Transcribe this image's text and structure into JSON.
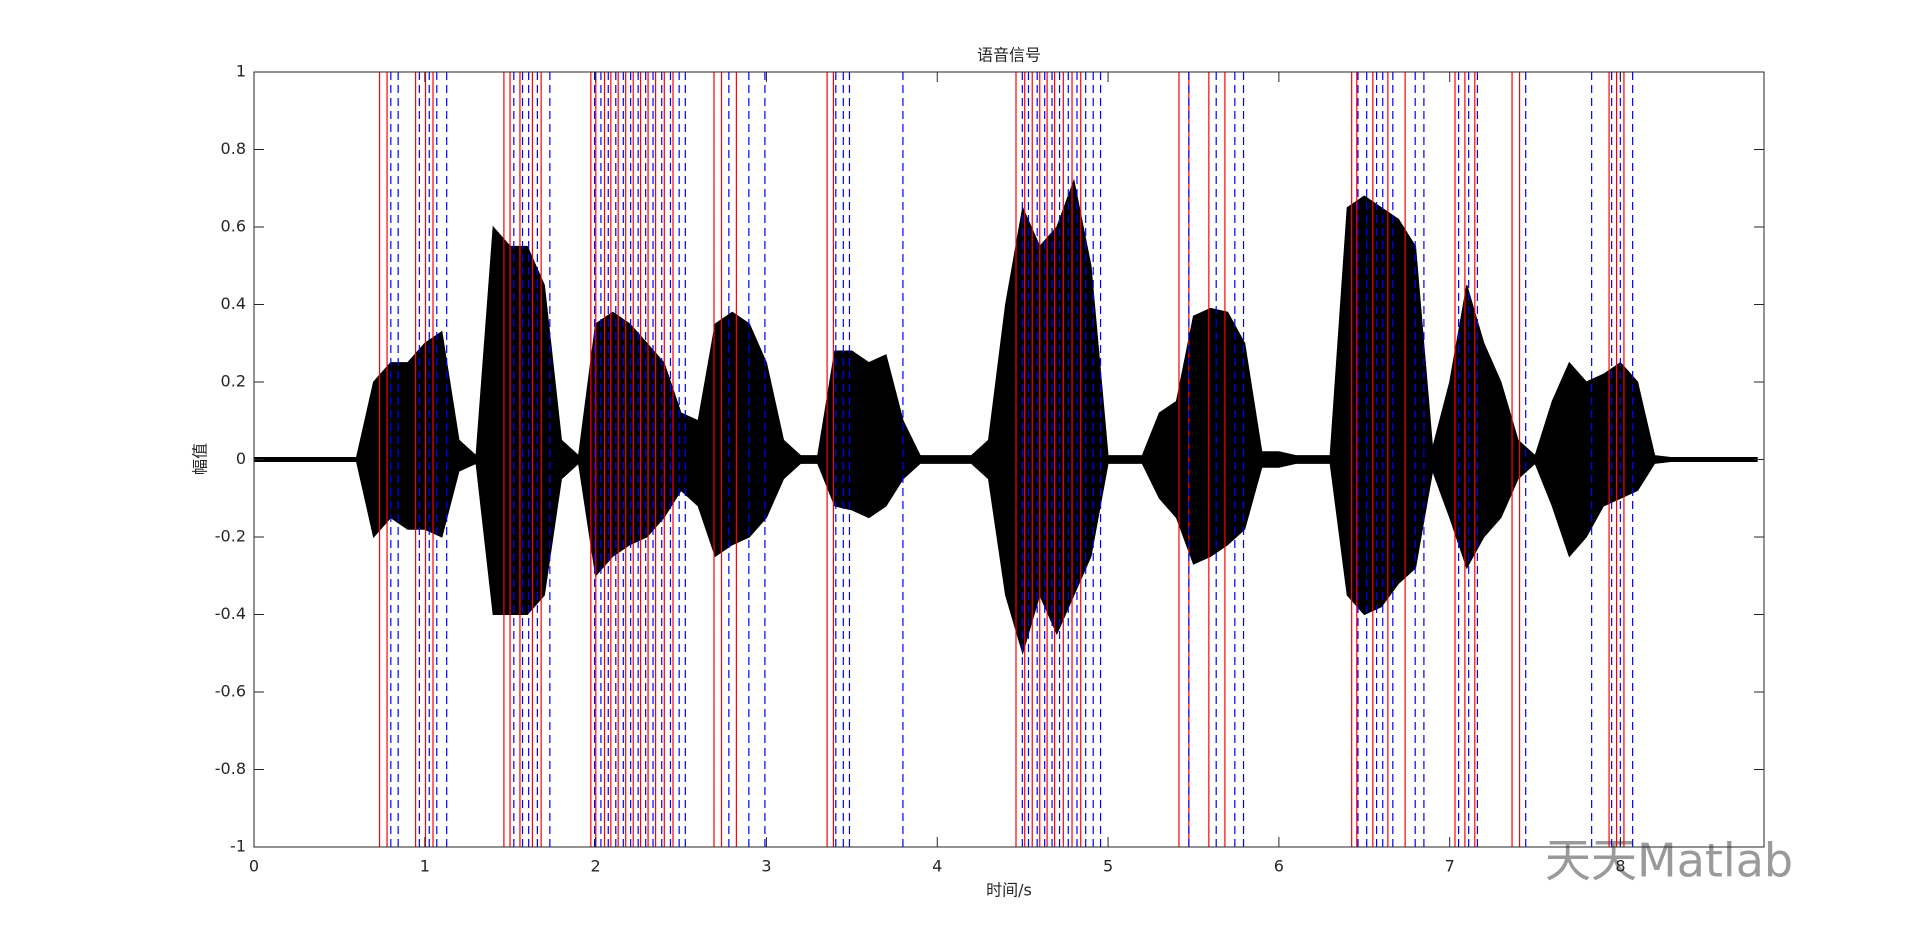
{
  "chart_data": {
    "type": "waveform",
    "title": "语音信号",
    "x_label": "时间/s",
    "y_label": "幅值",
    "watermark": "天天Matlab",
    "x": [
      0,
      0.1,
      0.2,
      0.3,
      0.4,
      0.5,
      0.6,
      0.7,
      0.8,
      0.9,
      1.0,
      1.1,
      1.2,
      1.3,
      1.4,
      1.5,
      1.6,
      1.7,
      1.8,
      1.9,
      2.0,
      2.1,
      2.2,
      2.3,
      2.4,
      2.5,
      2.6,
      2.7,
      2.8,
      2.9,
      3.0,
      3.1,
      3.2,
      3.3,
      3.4,
      3.5,
      3.6,
      3.7,
      3.8,
      3.9,
      4.0,
      4.1,
      4.2,
      4.3,
      4.4,
      4.5,
      4.6,
      4.7,
      4.8,
      4.9,
      5.0,
      5.1,
      5.2,
      5.3,
      5.4,
      5.5,
      5.6,
      5.7,
      5.8,
      5.9,
      6.0,
      6.1,
      6.2,
      6.3,
      6.4,
      6.5,
      6.6,
      6.7,
      6.8,
      6.9,
      7.0,
      7.1,
      7.2,
      7.3,
      7.4,
      7.5,
      7.6,
      7.7,
      7.8,
      7.9,
      8.0,
      8.1,
      8.2,
      8.3,
      8.4,
      8.5,
      8.6,
      8.7,
      8.8
    ],
    "upper": [
      0.005,
      0.005,
      0.005,
      0.005,
      0.005,
      0.005,
      0.005,
      0.2,
      0.25,
      0.25,
      0.3,
      0.33,
      0.05,
      0.01,
      0.6,
      0.55,
      0.55,
      0.45,
      0.05,
      0.01,
      0.35,
      0.38,
      0.35,
      0.3,
      0.25,
      0.12,
      0.1,
      0.35,
      0.38,
      0.35,
      0.25,
      0.05,
      0.01,
      0.01,
      0.28,
      0.28,
      0.25,
      0.27,
      0.1,
      0.01,
      0.01,
      0.01,
      0.01,
      0.05,
      0.4,
      0.65,
      0.55,
      0.6,
      0.72,
      0.5,
      0.01,
      0.01,
      0.01,
      0.12,
      0.15,
      0.37,
      0.39,
      0.38,
      0.3,
      0.02,
      0.02,
      0.01,
      0.01,
      0.01,
      0.65,
      0.68,
      0.65,
      0.62,
      0.55,
      0.03,
      0.2,
      0.45,
      0.3,
      0.2,
      0.05,
      0.01,
      0.15,
      0.25,
      0.2,
      0.22,
      0.25,
      0.2,
      0.01,
      0.005,
      0.005,
      0.005,
      0.005,
      0.005,
      0.005
    ],
    "lower": [
      -0.005,
      -0.005,
      -0.005,
      -0.005,
      -0.005,
      -0.005,
      -0.005,
      -0.2,
      -0.15,
      -0.18,
      -0.18,
      -0.2,
      -0.03,
      -0.01,
      -0.4,
      -0.4,
      -0.4,
      -0.35,
      -0.05,
      -0.01,
      -0.3,
      -0.25,
      -0.22,
      -0.2,
      -0.15,
      -0.08,
      -0.12,
      -0.25,
      -0.22,
      -0.2,
      -0.15,
      -0.05,
      -0.01,
      -0.01,
      -0.12,
      -0.13,
      -0.15,
      -0.12,
      -0.05,
      -0.01,
      -0.01,
      -0.01,
      -0.01,
      -0.05,
      -0.35,
      -0.5,
      -0.35,
      -0.45,
      -0.35,
      -0.25,
      -0.01,
      -0.01,
      -0.01,
      -0.1,
      -0.15,
      -0.27,
      -0.25,
      -0.22,
      -0.18,
      -0.02,
      -0.02,
      -0.01,
      -0.01,
      -0.01,
      -0.35,
      -0.4,
      -0.38,
      -0.32,
      -0.28,
      -0.03,
      -0.15,
      -0.28,
      -0.2,
      -0.15,
      -0.05,
      -0.01,
      -0.12,
      -0.25,
      -0.2,
      -0.12,
      -0.1,
      -0.08,
      -0.01,
      -0.005,
      -0.005,
      -0.005,
      -0.005,
      -0.005,
      -0.005
    ],
    "color": "#000000",
    "segment_starts": {
      "color": "#ff0000",
      "dashed": false,
      "values": [
        0.735,
        0.779,
        0.946,
        1.004,
        1.048,
        1.463,
        1.499,
        1.557,
        1.63,
        1.681,
        1.972,
        2.001,
        2.052,
        2.089,
        2.132,
        2.176,
        2.22,
        2.263,
        2.307,
        2.351,
        2.402,
        2.453,
        2.693,
        2.737,
        2.824,
        3.355,
        3.392,
        4.461,
        4.512,
        4.556,
        4.6,
        4.643,
        4.687,
        4.738,
        4.789,
        4.84,
        5.415,
        5.473,
        5.59,
        5.684,
        6.426,
        6.456,
        6.55,
        6.638,
        6.739,
        7.031,
        7.089,
        7.147,
        7.365,
        7.409,
        7.933,
        7.977,
        8.02
      ]
    },
    "segment_ends": {
      "color": "#0000ff",
      "dashed": true,
      "values": [
        0.801,
        0.844,
        0.968,
        1.026,
        1.07,
        1.128,
        1.521,
        1.572,
        1.608,
        1.659,
        1.732,
        1.994,
        2.031,
        2.074,
        2.118,
        2.162,
        2.205,
        2.249,
        2.293,
        2.336,
        2.387,
        2.438,
        2.489,
        2.525,
        2.78,
        2.897,
        2.991,
        3.406,
        3.45,
        3.486,
        3.799,
        4.498,
        4.534,
        4.585,
        4.629,
        4.672,
        4.716,
        4.767,
        4.818,
        4.869,
        4.913,
        4.956,
        5.473,
        5.633,
        5.742,
        5.793,
        6.463,
        6.514,
        6.572,
        6.608,
        6.667,
        6.798,
        6.849,
        7.052,
        7.111,
        7.162,
        7.445,
        7.831,
        7.948,
        7.999,
        8.071
      ]
    },
    "xlim": [
      0,
      8.84
    ],
    "xticks": [
      0,
      1,
      2,
      3,
      4,
      5,
      6,
      7,
      8
    ],
    "ylim": [
      -1,
      1
    ],
    "yticks": [
      -1,
      -0.8,
      -0.6,
      -0.4,
      -0.2,
      0,
      0.2,
      0.4,
      0.6,
      0.8,
      1
    ]
  }
}
